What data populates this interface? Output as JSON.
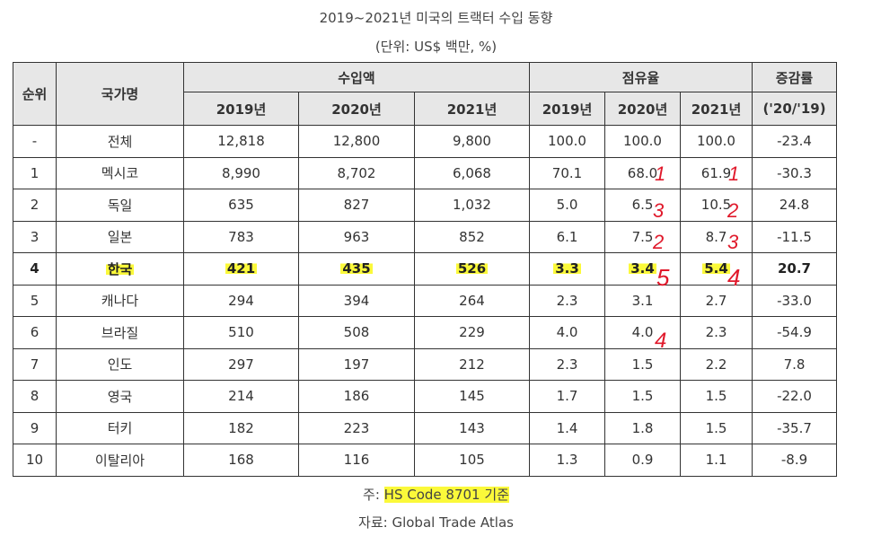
{
  "title": "2019~2021년 미국의 트랙터 수입 동향",
  "unit": "(단위: US$ 백만, %)",
  "headers": {
    "rank": "순위",
    "country": "국가명",
    "import_amount": "수입액",
    "share": "점유율",
    "growth": "증감률",
    "growth_sub": "('20/'19)",
    "years": [
      "2019년",
      "2020년",
      "2021년"
    ]
  },
  "rows": [
    {
      "rank": "-",
      "country": "전체",
      "imp": [
        "12,818",
        "12,800",
        "9,800"
      ],
      "share": [
        "100.0",
        "100.0",
        "100.0"
      ],
      "growth": "-23.4"
    },
    {
      "rank": "1",
      "country": "멕시코",
      "imp": [
        "8,990",
        "8,702",
        "6,068"
      ],
      "share": [
        "70.1",
        "68.0",
        "61.9"
      ],
      "growth": "-30.3"
    },
    {
      "rank": "2",
      "country": "독일",
      "imp": [
        "635",
        "827",
        "1,032"
      ],
      "share": [
        "5.0",
        "6.5",
        "10.5"
      ],
      "growth": "24.8"
    },
    {
      "rank": "3",
      "country": "일본",
      "imp": [
        "783",
        "963",
        "852"
      ],
      "share": [
        "6.1",
        "7.5",
        "8.7"
      ],
      "growth": "-11.5"
    },
    {
      "rank": "4",
      "country": "한국",
      "imp": [
        "421",
        "435",
        "526"
      ],
      "share": [
        "3.3",
        "3.4",
        "5.4"
      ],
      "growth": "20.7"
    },
    {
      "rank": "5",
      "country": "캐나다",
      "imp": [
        "294",
        "394",
        "264"
      ],
      "share": [
        "2.3",
        "3.1",
        "2.7"
      ],
      "growth": "-33.0"
    },
    {
      "rank": "6",
      "country": "브라질",
      "imp": [
        "510",
        "508",
        "229"
      ],
      "share": [
        "4.0",
        "4.0",
        "2.3"
      ],
      "growth": "-54.9"
    },
    {
      "rank": "7",
      "country": "인도",
      "imp": [
        "297",
        "197",
        "212"
      ],
      "share": [
        "2.3",
        "1.5",
        "2.2"
      ],
      "growth": "7.8"
    },
    {
      "rank": "8",
      "country": "영국",
      "imp": [
        "214",
        "186",
        "145"
      ],
      "share": [
        "1.7",
        "1.5",
        "1.5"
      ],
      "growth": "-22.0"
    },
    {
      "rank": "9",
      "country": "터키",
      "imp": [
        "182",
        "223",
        "143"
      ],
      "share": [
        "1.4",
        "1.8",
        "1.5"
      ],
      "growth": "-35.7"
    },
    {
      "rank": "10",
      "country": "이탈리아",
      "imp": [
        "168",
        "116",
        "105"
      ],
      "share": [
        "1.3",
        "0.9",
        "1.1"
      ],
      "growth": "-8.9"
    }
  ],
  "footnote": {
    "prefix": "주: ",
    "code": "HS Code 8701 기준"
  },
  "source": "자료: Global Trade Atlas",
  "annotations": {
    "share_2020_ranks": [
      "1",
      "3",
      "2",
      "5",
      "4"
    ],
    "share_2021_ranks": [
      "1",
      "2",
      "3",
      "4"
    ]
  },
  "colors": {
    "highlight": "#fbf93a",
    "header_bg": "#e7e7e7",
    "annotation": "#e0192b",
    "border": "#333333"
  }
}
